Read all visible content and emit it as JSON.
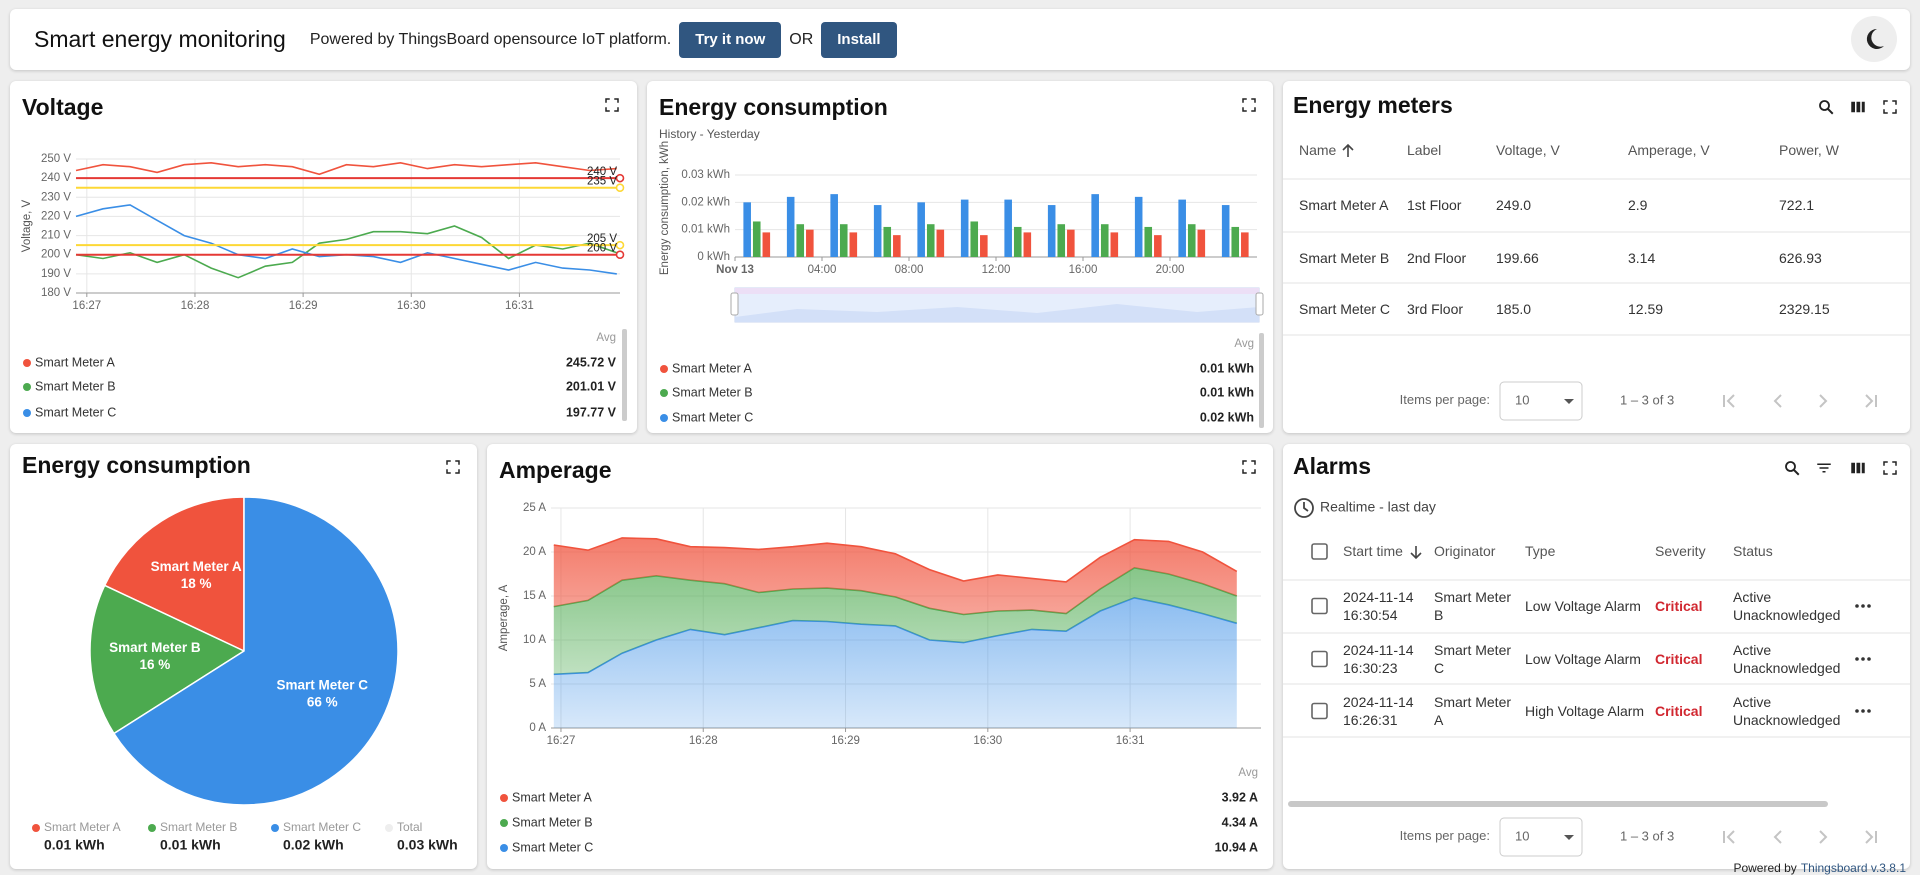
{
  "header": {
    "title": "Smart energy monitoring",
    "tagline": "Powered by ThingsBoard opensource IoT platform.",
    "try_button": "Try it now",
    "or": "OR",
    "install_button": "Install"
  },
  "voltage": {
    "chart_data": {
      "type": "line",
      "title": "Voltage",
      "y_label": "Voltage, V",
      "x": [
        -0.1,
        0.15,
        0.4,
        0.65,
        0.9,
        1.15,
        1.4,
        1.65,
        1.9,
        2.15,
        2.4,
        2.65,
        2.9,
        3.15,
        3.4,
        3.65,
        3.9,
        4.15,
        4.4,
        4.65,
        4.9
      ],
      "xlim": [
        -0.1,
        4.93
      ],
      "xticks": [
        {
          "value": 0,
          "label": "16:27"
        },
        {
          "value": 1,
          "label": "16:28"
        },
        {
          "value": 2,
          "label": "16:29"
        },
        {
          "value": 3,
          "label": "16:30"
        },
        {
          "value": 4,
          "label": "16:31"
        }
      ],
      "ylim": [
        180,
        250
      ],
      "yticks": [
        {
          "value": 180,
          "label": "180 V"
        },
        {
          "value": 190,
          "label": "190 V"
        },
        {
          "value": 200,
          "label": "200 V"
        },
        {
          "value": 210,
          "label": "210 V"
        },
        {
          "value": 220,
          "label": "220 V"
        },
        {
          "value": 230,
          "label": "230 V"
        },
        {
          "value": 240,
          "label": "240 V"
        },
        {
          "value": 250,
          "label": "250 V"
        }
      ],
      "grid": true,
      "x_grid": true,
      "series": [
        {
          "name": "Smart Meter A",
          "color": "#f0533d",
          "values": [
            244,
            247,
            246,
            243,
            247,
            248,
            246,
            247,
            246,
            242,
            247,
            246,
            248,
            245,
            247,
            246,
            247,
            248,
            246,
            244,
            245
          ]
        },
        {
          "name": "Smart Meter B",
          "color": "#4caa4f",
          "values": [
            200,
            198,
            201,
            196,
            200,
            193,
            188,
            194,
            196,
            206,
            208,
            212,
            212,
            211,
            215,
            209,
            198,
            205,
            203,
            206,
            201
          ]
        },
        {
          "name": "Smart Meter C",
          "color": "#3a8ee6",
          "values": [
            220,
            224,
            226,
            218,
            210,
            206,
            200,
            198,
            203,
            199,
            200,
            199,
            196,
            201,
            198,
            195,
            192,
            196,
            193,
            192,
            190
          ]
        }
      ],
      "thresholds": [
        {
          "value": 240,
          "label": "240 V",
          "color": "#e53935"
        },
        {
          "value": 235,
          "label": "235 V",
          "color": "#fdd835"
        },
        {
          "value": 205,
          "label": "205 V",
          "color": "#fdd835"
        },
        {
          "value": 200,
          "label": "200 V",
          "color": "#e53935"
        }
      ],
      "legend": {
        "header": "Avg",
        "values": [
          245.72,
          201.01,
          197.77
        ],
        "value_labels": [
          "245.72 V",
          "201.01 V",
          "197.77 V"
        ]
      }
    }
  },
  "energy_history": {
    "chart_data": {
      "type": "bar",
      "title": "Energy consumption",
      "subtitle": "History - Yesterday",
      "y_label": "Energy consumption, kWh",
      "x": [
        1,
        3,
        5,
        7,
        9,
        11,
        13,
        15,
        17,
        19,
        21,
        23
      ],
      "xlim": [
        0,
        24
      ],
      "xticks": [
        {
          "value": 0,
          "label": "Nov 13"
        },
        {
          "value": 4,
          "label": "04:00"
        },
        {
          "value": 8,
          "label": "08:00"
        },
        {
          "value": 12,
          "label": "12:00"
        },
        {
          "value": 16,
          "label": "16:00"
        },
        {
          "value": 20,
          "label": "20:00"
        }
      ],
      "ylim": [
        0,
        0.03
      ],
      "yticks": [
        {
          "value": 0,
          "label": "0 kWh"
        },
        {
          "value": 0.01,
          "label": "0.01 kWh"
        },
        {
          "value": 0.02,
          "label": "0.02 kWh"
        },
        {
          "value": 0.03,
          "label": "0.03 kWh"
        }
      ],
      "grid": true,
      "x_grid": false,
      "series": [
        {
          "name": "Smart Meter A",
          "color": "#f0533d",
          "values": [
            0.009,
            0.01,
            0.009,
            0.008,
            0.01,
            0.008,
            0.009,
            0.01,
            0.009,
            0.008,
            0.01,
            0.009
          ]
        },
        {
          "name": "Smart Meter B",
          "color": "#4caa4f",
          "values": [
            0.013,
            0.012,
            0.012,
            0.011,
            0.012,
            0.013,
            0.011,
            0.012,
            0.012,
            0.011,
            0.012,
            0.011
          ]
        },
        {
          "name": "Smart Meter C",
          "color": "#3a8ee6",
          "values": [
            0.02,
            0.022,
            0.023,
            0.019,
            0.02,
            0.021,
            0.021,
            0.019,
            0.023,
            0.022,
            0.021,
            0.019
          ]
        }
      ],
      "legend": {
        "header": "Avg",
        "values": [
          0.01,
          0.01,
          0.02
        ],
        "value_labels": [
          "0.01 kWh",
          "0.01 kWh",
          "0.02 kWh"
        ]
      }
    }
  },
  "energy_meters": {
    "title": "Energy meters",
    "columns": [
      "Name",
      "Label",
      "Voltage, V",
      "Amperage, V",
      "Power, W"
    ],
    "rows": [
      [
        "Smart Meter A",
        "1st Floor",
        "249.0",
        "2.9",
        "722.1"
      ],
      [
        "Smart Meter B",
        "2nd Floor",
        "199.66",
        "3.14",
        "626.93"
      ],
      [
        "Smart Meter C",
        "3rd Floor",
        "185.0",
        "12.59",
        "2329.15"
      ]
    ],
    "paginator": {
      "items_per_page": "Items per page:",
      "page_size": "10",
      "range": "1 – 3 of 3"
    }
  },
  "energy_pie": {
    "chart_data": {
      "type": "pie",
      "title": "Energy consumption",
      "categories": [
        "Smart Meter A",
        "Smart Meter B",
        "Smart Meter C"
      ],
      "values": [
        18,
        16,
        66
      ],
      "value_labels": [
        "18 %",
        "16 %",
        "66 %"
      ],
      "colors": [
        "#f0533d",
        "#4caa4f",
        "#3a8ee6"
      ],
      "legend": {
        "values": [
          0.01,
          0.01,
          0.02
        ],
        "value_labels": [
          "0.01 kWh",
          "0.01 kWh",
          "0.02 kWh"
        ],
        "total": {
          "name": "Total",
          "value": 0.03,
          "label": "0.03 kWh",
          "color": "#eeeeee"
        }
      }
    }
  },
  "amperage": {
    "chart_data": {
      "type": "area",
      "stacked": true,
      "title": "Amperage",
      "y_label": "Amperage, A",
      "x": [
        -0.05,
        0.19,
        0.43,
        0.67,
        0.91,
        1.15,
        1.39,
        1.63,
        1.87,
        2.11,
        2.35,
        2.59,
        2.83,
        3.07,
        3.31,
        3.55,
        3.79,
        4.03,
        4.27,
        4.51,
        4.75
      ],
      "xlim": [
        -0.07,
        4.92
      ],
      "xticks": [
        {
          "value": 0,
          "label": "16:27"
        },
        {
          "value": 1,
          "label": "16:28"
        },
        {
          "value": 2,
          "label": "16:29"
        },
        {
          "value": 3,
          "label": "16:30"
        },
        {
          "value": 4,
          "label": "16:31"
        }
      ],
      "ylim": [
        0,
        25
      ],
      "yticks": [
        {
          "value": 0,
          "label": "0 A"
        },
        {
          "value": 5,
          "label": "5 A"
        },
        {
          "value": 10,
          "label": "10 A"
        },
        {
          "value": 15,
          "label": "15 A"
        },
        {
          "value": 20,
          "label": "20 A"
        },
        {
          "value": 25,
          "label": "25 A"
        }
      ],
      "grid": true,
      "x_grid": true,
      "series": [
        {
          "name": "Smart Meter A",
          "color": "#f0533d",
          "values": [
            7.0,
            5.7,
            4.8,
            4.2,
            3.8,
            4.1,
            4.9,
            4.8,
            5.1,
            5.0,
            4.9,
            4.4,
            3.8,
            4.1,
            3.6,
            3.6,
            3.6,
            3.2,
            3.7,
            3.6,
            2.8
          ]
        },
        {
          "name": "Smart Meter B",
          "color": "#4caa4f",
          "values": [
            7.7,
            8.2,
            8.3,
            7.3,
            5.6,
            5.8,
            4.0,
            3.6,
            3.8,
            3.8,
            3.3,
            3.6,
            3.2,
            2.8,
            2.2,
            2.0,
            2.5,
            3.4,
            3.5,
            3.4,
            3.1
          ]
        },
        {
          "name": "Smart Meter C",
          "color": "#3a8ee6",
          "values": [
            6.1,
            6.3,
            8.5,
            10.0,
            11.2,
            10.6,
            11.4,
            12.2,
            12.1,
            11.8,
            11.6,
            10.0,
            9.7,
            10.5,
            11.2,
            11.0,
            13.3,
            14.8,
            14.0,
            13.0,
            11.9
          ]
        }
      ],
      "legend": {
        "header": "Avg",
        "values": [
          3.92,
          4.34,
          10.94
        ],
        "value_labels": [
          "3.92 A",
          "4.34 A",
          "10.94 A"
        ]
      }
    }
  },
  "alarms": {
    "title": "Alarms",
    "timewindow": "Realtime - last day",
    "columns": [
      "Start time",
      "Originator",
      "Type",
      "Severity",
      "Status"
    ],
    "rows": [
      [
        "2024-11-14 16:30:54",
        "Smart Meter B",
        "Low Voltage Alarm",
        "Critical",
        "Active Unacknowledged"
      ],
      [
        "2024-11-14 16:30:23",
        "Smart Meter C",
        "Low Voltage Alarm",
        "Critical",
        "Active Unacknowledged"
      ],
      [
        "2024-11-14 16:26:31",
        "Smart Meter A",
        "High Voltage Alarm",
        "Critical",
        "Active Unacknowledged"
      ]
    ],
    "paginator": {
      "items_per_page": "Items per page:",
      "page_size": "10",
      "range": "1 – 3 of 3"
    }
  },
  "footer": {
    "powered_by": "Powered by",
    "version": "Thingsboard v.3.8.1"
  }
}
